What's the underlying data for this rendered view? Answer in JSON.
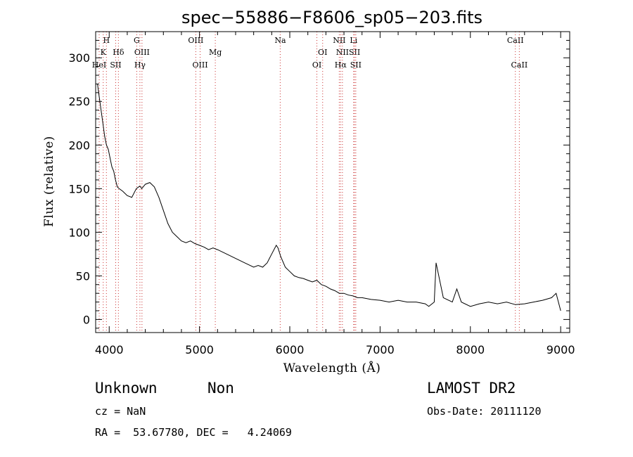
{
  "chart_data": {
    "type": "line",
    "title": "spec−55886−F8606_sp05−203.fits",
    "xlabel": "Wavelength (Å)",
    "ylabel": "Flux (relative)",
    "xlim": [
      3850,
      9100
    ],
    "ylim": [
      -15,
      330
    ],
    "xticks": [
      4000,
      5000,
      6000,
      7000,
      8000,
      9000
    ],
    "yticks": [
      0,
      50,
      100,
      150,
      200,
      250,
      300
    ],
    "grid": false,
    "series": [
      {
        "color": "#000000",
        "x": [
          3870,
          3890,
          3910,
          3930,
          3950,
          3970,
          3990,
          4010,
          4030,
          4050,
          4070,
          4090,
          4110,
          4150,
          4200,
          4250,
          4300,
          4340,
          4360,
          4400,
          4450,
          4500,
          4550,
          4600,
          4650,
          4700,
          4750,
          4800,
          4850,
          4900,
          4950,
          5000,
          5050,
          5100,
          5150,
          5200,
          5300,
          5400,
          5500,
          5600,
          5650,
          5700,
          5750,
          5800,
          5850,
          5870,
          5900,
          5950,
          6000,
          6050,
          6100,
          6150,
          6200,
          6250,
          6300,
          6350,
          6400,
          6450,
          6500,
          6550,
          6600,
          6650,
          6700,
          6750,
          6800,
          6900,
          7000,
          7100,
          7200,
          7300,
          7400,
          7500,
          7540,
          7600,
          7620,
          7700,
          7800,
          7850,
          7900,
          8000,
          8100,
          8200,
          8300,
          8400,
          8500,
          8600,
          8700,
          8800,
          8900,
          8950,
          9000
        ],
        "values": [
          270,
          255,
          240,
          225,
          210,
          200,
          195,
          185,
          175,
          170,
          160,
          152,
          150,
          147,
          142,
          140,
          150,
          153,
          150,
          155,
          157,
          152,
          140,
          125,
          110,
          100,
          95,
          90,
          88,
          90,
          87,
          85,
          83,
          80,
          82,
          80,
          75,
          70,
          65,
          60,
          62,
          60,
          65,
          75,
          85,
          82,
          72,
          60,
          55,
          50,
          48,
          47,
          45,
          43,
          45,
          40,
          38,
          35,
          33,
          30,
          30,
          28,
          27,
          25,
          25,
          23,
          22,
          20,
          22,
          20,
          20,
          18,
          15,
          20,
          65,
          25,
          20,
          35,
          20,
          15,
          18,
          20,
          18,
          20,
          17,
          18,
          20,
          22,
          25,
          30,
          10
        ]
      }
    ],
    "spectral_lines": [
      {
        "label": "H",
        "x": 3969,
        "row": 1
      },
      {
        "label": "K",
        "x": 3934,
        "row": 2
      },
      {
        "label": "HeI",
        "x": 3889,
        "row": 3
      },
      {
        "label": "Hδ",
        "x": 4102,
        "row": 2
      },
      {
        "label": "SII",
        "x": 4072,
        "row": 3
      },
      {
        "label": "G",
        "x": 4305,
        "row": 1
      },
      {
        "label": "OIII",
        "x": 4363,
        "row": 2
      },
      {
        "label": "Hγ",
        "x": 4340,
        "row": 3
      },
      {
        "label": "OIII",
        "x": 4959,
        "row": 1
      },
      {
        "label": "OIII",
        "x": 5007,
        "row": 3
      },
      {
        "label": "Mg",
        "x": 5175,
        "row": 2
      },
      {
        "label": "Na",
        "x": 5894,
        "row": 1
      },
      {
        "label": "OI",
        "x": 6364,
        "row": 2
      },
      {
        "label": "OI",
        "x": 6300,
        "row": 3
      },
      {
        "label": "NII",
        "x": 6548,
        "row": 1
      },
      {
        "label": "Li",
        "x": 6707,
        "row": 1
      },
      {
        "label": "NII",
        "x": 6583,
        "row": 2
      },
      {
        "label": "SII",
        "x": 6717,
        "row": 2
      },
      {
        "label": "Hα",
        "x": 6563,
        "row": 3
      },
      {
        "label": "SII",
        "x": 6731,
        "row": 3
      },
      {
        "label": "CaII",
        "x": 8498,
        "row": 1
      },
      {
        "label": "CaII",
        "x": 8542,
        "row": 3
      }
    ]
  },
  "info": {
    "class_label": "Unknown",
    "subclass_label": "Non",
    "survey": "LAMOST DR2",
    "redshift": "cz = NaN",
    "obs_date": "Obs-Date: 20111120",
    "coords": "RA =  53.67780, DEC =   4.24069"
  }
}
